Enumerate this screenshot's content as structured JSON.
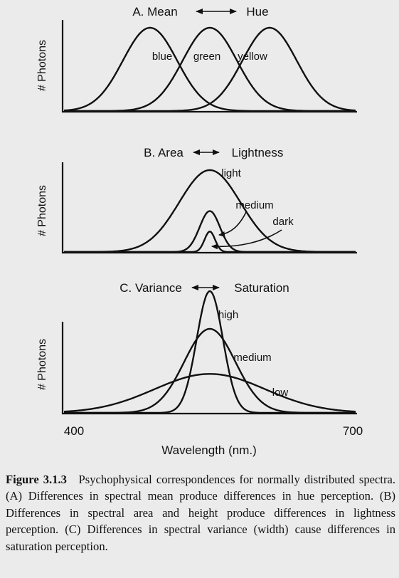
{
  "panels": [
    {
      "title": "A. Mean",
      "title_right": "Hue",
      "ylabel": "# Photons",
      "labels": [
        "blue",
        "green",
        "yellow"
      ]
    },
    {
      "title": "B. Area",
      "title_right": "Lightness",
      "ylabel": "# Photons",
      "labels": [
        "light",
        "medium",
        "dark"
      ]
    },
    {
      "title": "C. Variance",
      "title_right": "Saturation",
      "ylabel": "# Photons",
      "labels": [
        "high",
        "medium",
        "low"
      ]
    }
  ],
  "xaxis": {
    "min_label": "400",
    "max_label": "700",
    "title": "Wavelength (nm.)"
  },
  "caption": {
    "label": "Figure 3.1.3",
    "text": "Psychophysical correspondences for normally distributed spectra. (A) Differences in spectral mean produce differences in hue perception. (B) Differences in spectral area and height produce differences in lightness perception. (C) Differences in spectral variance (width) cause differences in saturation perception."
  },
  "chart_data": [
    {
      "type": "line",
      "title": "A. Mean ↔ Hue",
      "xlabel": "",
      "ylabel": "# Photons",
      "series": [
        {
          "name": "blue",
          "mean": 0.295,
          "sd": 0.093,
          "peak": 1.0
        },
        {
          "name": "green",
          "mean": 0.5,
          "sd": 0.093,
          "peak": 1.0
        },
        {
          "name": "yellow",
          "mean": 0.705,
          "sd": 0.093,
          "peak": 1.0
        }
      ]
    },
    {
      "type": "line",
      "title": "B. Area ↔ Lightness",
      "xlabel": "",
      "ylabel": "# Photons",
      "series": [
        {
          "name": "light",
          "mean": 0.5,
          "sd": 0.105,
          "peak": 1.0
        },
        {
          "name": "medium",
          "mean": 0.5,
          "sd": 0.035,
          "peak": 0.5
        },
        {
          "name": "dark",
          "mean": 0.5,
          "sd": 0.018,
          "peak": 0.25
        }
      ]
    },
    {
      "type": "line",
      "title": "C. Variance ↔ Saturation",
      "xlabel": "Wavelength (nm.)",
      "ylabel": "# Photons",
      "x_ticks": [
        "400",
        "700"
      ],
      "series": [
        {
          "name": "high",
          "mean": 0.5,
          "sd": 0.045,
          "peak": 1.0
        },
        {
          "name": "medium",
          "mean": 0.5,
          "sd": 0.088,
          "peak": 0.69
        },
        {
          "name": "low",
          "mean": 0.5,
          "sd": 0.19,
          "peak": 0.32
        }
      ]
    }
  ]
}
